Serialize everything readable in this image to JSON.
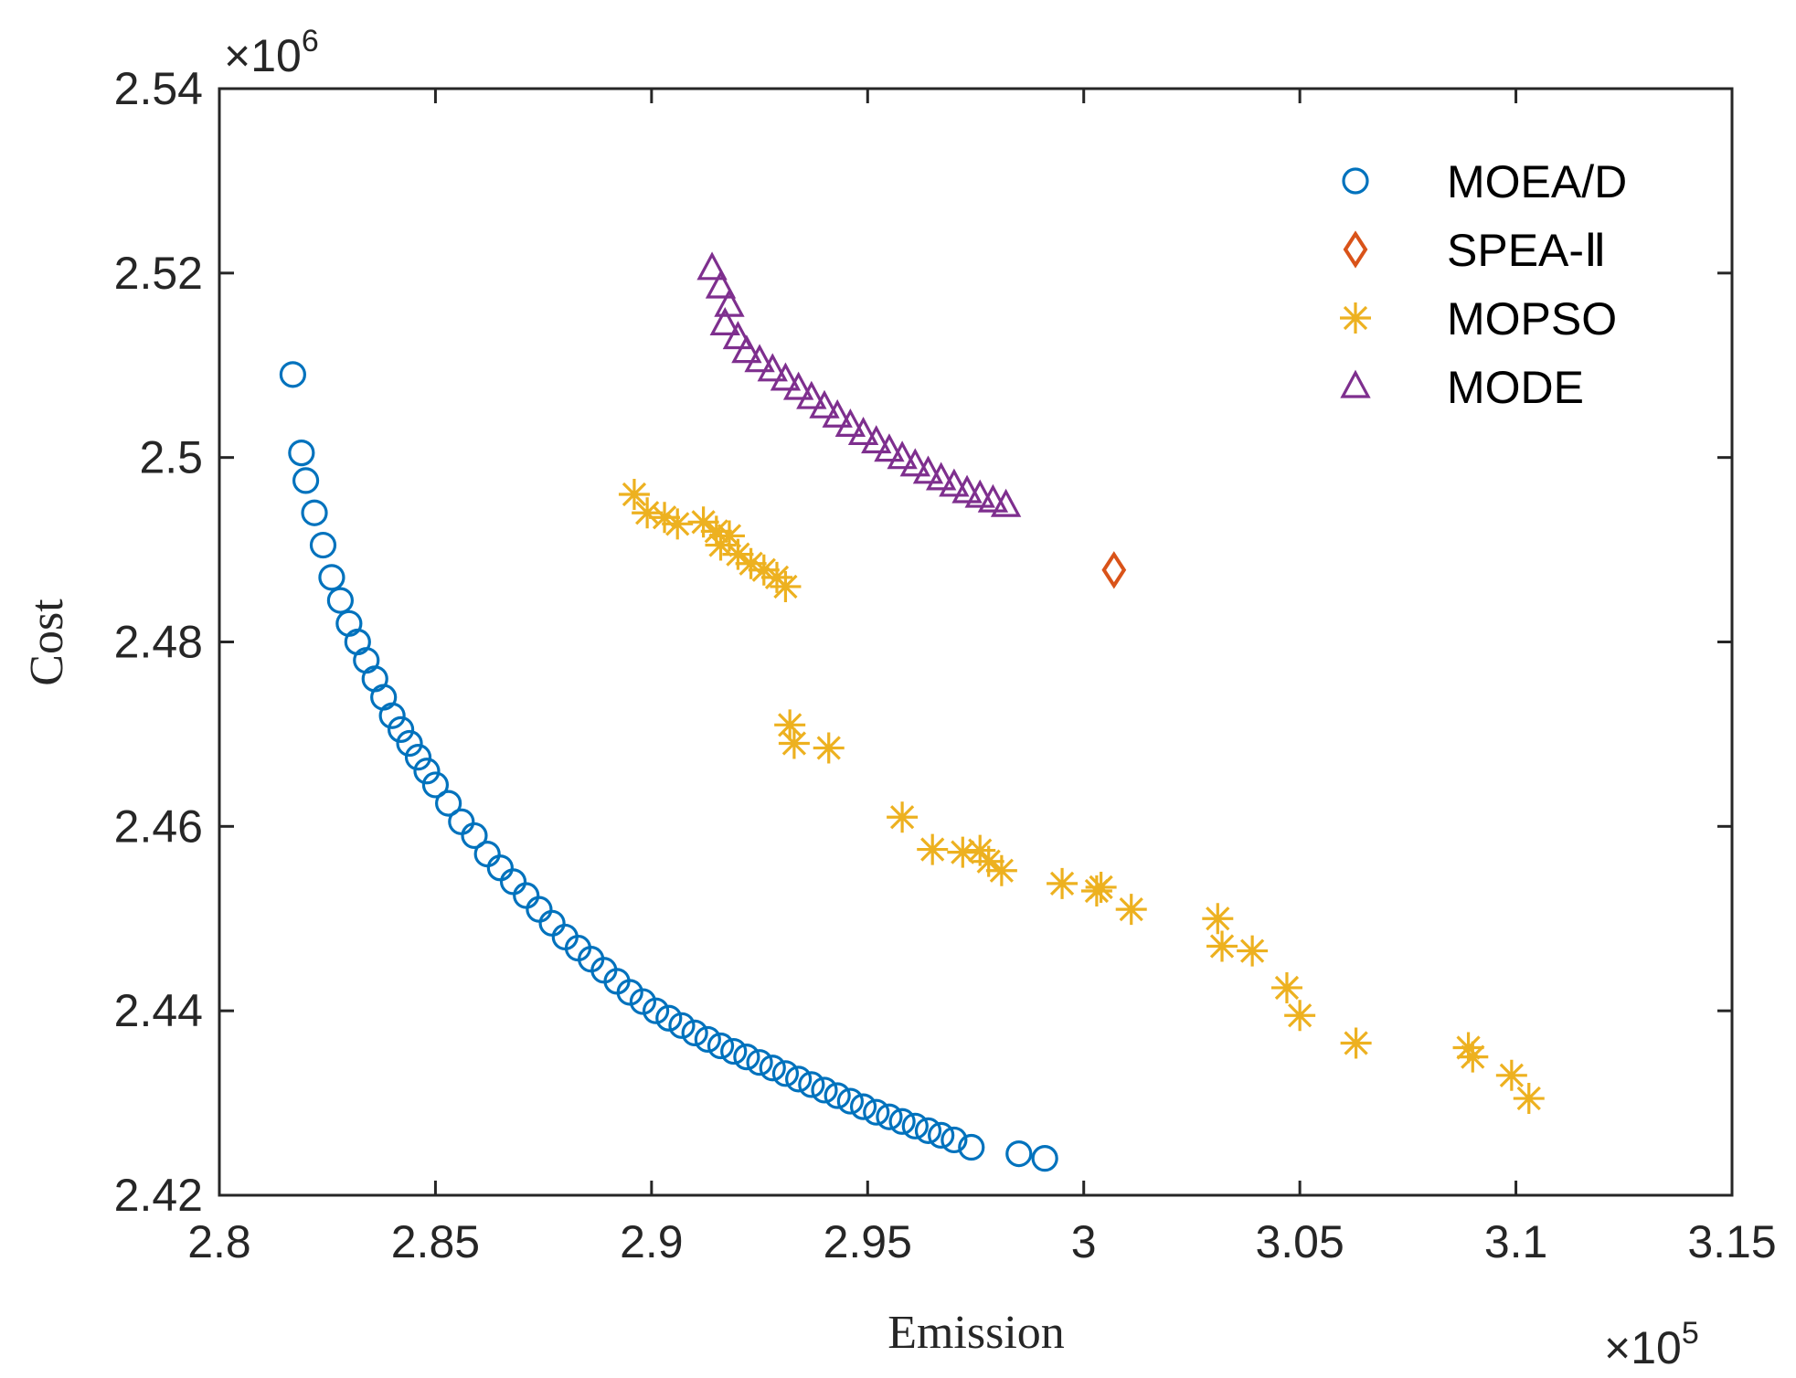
{
  "chart_data": {
    "type": "scatter",
    "title": "",
    "xlabel": "Emission",
    "ylabel": "Cost",
    "xlim": [
      280000,
      315000
    ],
    "ylim": [
      2420000,
      2540000
    ],
    "x_multiplier_label": "×10",
    "x_multiplier_exp": "5",
    "y_multiplier_label": "×10",
    "y_multiplier_exp": "6",
    "x_ticks": [
      280000,
      285000,
      290000,
      295000,
      300000,
      305000,
      310000,
      315000
    ],
    "x_tick_labels": [
      "2.8",
      "2.85",
      "2.9",
      "2.95",
      "3",
      "3.05",
      "3.1",
      "3.15"
    ],
    "y_ticks": [
      2420000,
      2440000,
      2460000,
      2480000,
      2500000,
      2520000,
      2540000
    ],
    "y_tick_labels": [
      "2.42",
      "2.44",
      "2.46",
      "2.48",
      "2.5",
      "2.52",
      "2.54"
    ],
    "legend_position": "top-right",
    "series": [
      {
        "name": "MOEA/D",
        "marker": "circle",
        "color": "#0072BD",
        "x": [
          281700,
          281900,
          282000,
          282200,
          282400,
          282600,
          282800,
          283000,
          283200,
          283400,
          283600,
          283800,
          284000,
          284200,
          284400,
          284600,
          284800,
          285000,
          285300,
          285600,
          285900,
          286200,
          286500,
          286800,
          287100,
          287400,
          287700,
          288000,
          288300,
          288600,
          288900,
          289200,
          289500,
          289800,
          290100,
          290400,
          290700,
          291000,
          291300,
          291600,
          291900,
          292200,
          292500,
          292800,
          293100,
          293400,
          293700,
          294000,
          294300,
          294600,
          294900,
          295200,
          295500,
          295800,
          296100,
          296400,
          296700,
          297000,
          297400,
          298500,
          299100
        ],
        "y": [
          2509000,
          2500500,
          2497500,
          2494000,
          2490500,
          2487000,
          2484500,
          2482000,
          2480000,
          2478000,
          2476000,
          2474000,
          2472000,
          2470500,
          2469000,
          2467500,
          2466000,
          2464500,
          2462500,
          2460500,
          2459000,
          2457000,
          2455500,
          2454000,
          2452500,
          2451000,
          2449500,
          2448000,
          2446800,
          2445600,
          2444400,
          2443200,
          2442000,
          2441000,
          2440000,
          2439200,
          2438400,
          2437600,
          2436900,
          2436200,
          2435600,
          2435000,
          2434400,
          2433800,
          2433200,
          2432600,
          2432000,
          2431400,
          2430800,
          2430200,
          2429600,
          2429000,
          2428500,
          2428000,
          2427500,
          2427000,
          2426500,
          2426000,
          2425200,
          2424500,
          2424000
        ]
      },
      {
        "name": "SPEA-Ⅱ",
        "marker": "diamond",
        "color": "#D95319",
        "x": [
          300700
        ],
        "y": [
          2487800
        ]
      },
      {
        "name": "MOPSO",
        "marker": "asterisk",
        "color": "#EDB120",
        "x": [
          289600,
          289900,
          290300,
          290600,
          291200,
          291500,
          291800,
          291600,
          292000,
          292300,
          292600,
          292900,
          293100,
          293200,
          293300,
          294100,
          295800,
          296500,
          297200,
          297600,
          297800,
          298100,
          299500,
          300300,
          300400,
          301100,
          303100,
          303200,
          303900,
          304700,
          305000,
          306300,
          308900,
          309000,
          309900,
          310300
        ],
        "y": [
          2496000,
          2494000,
          2493500,
          2492800,
          2493000,
          2492000,
          2491500,
          2490500,
          2489500,
          2488500,
          2487800,
          2487000,
          2486000,
          2471000,
          2469000,
          2468500,
          2461000,
          2457500,
          2457200,
          2457400,
          2456200,
          2455200,
          2453800,
          2453000,
          2453400,
          2451000,
          2450000,
          2447000,
          2446500,
          2442500,
          2439500,
          2436500,
          2436000,
          2435000,
          2433000,
          2430500
        ]
      },
      {
        "name": "MODE",
        "marker": "triangle",
        "color": "#7E2F8E",
        "x": [
          291400,
          291600,
          291800,
          291700,
          292000,
          292200,
          292500,
          292800,
          293100,
          293400,
          293700,
          294000,
          294300,
          294600,
          294900,
          295200,
          295500,
          295800,
          296100,
          296400,
          296700,
          297000,
          297300,
          297600,
          297900,
          298200
        ],
        "y": [
          2520500,
          2518500,
          2516500,
          2514500,
          2513000,
          2511500,
          2510500,
          2509500,
          2508500,
          2507500,
          2506500,
          2505500,
          2504500,
          2503500,
          2502600,
          2501700,
          2500800,
          2500000,
          2499200,
          2498400,
          2497700,
          2497000,
          2496300,
          2495800,
          2495300,
          2494800
        ]
      }
    ]
  }
}
